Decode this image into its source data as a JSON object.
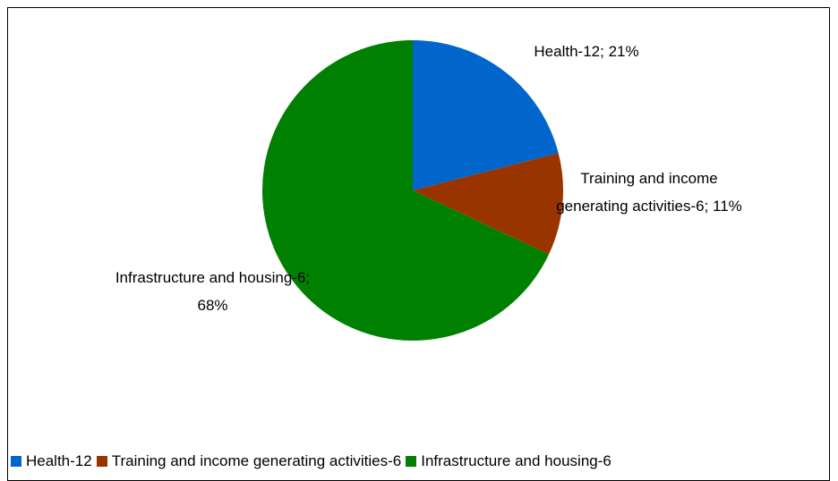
{
  "chart_data": {
    "type": "pie",
    "categories": [
      "Health-12",
      "Training and income generating activities-6",
      "Infrastructure and housing-6"
    ],
    "values": [
      21,
      11,
      68
    ],
    "value_labels": [
      "Health-12; 21%",
      "Training and income generating activities-6; 11%",
      "Infrastructure and housing-6; 68%"
    ],
    "colors": [
      "#0066cc",
      "#993300",
      "#008000"
    ],
    "legend": "bottom"
  }
}
